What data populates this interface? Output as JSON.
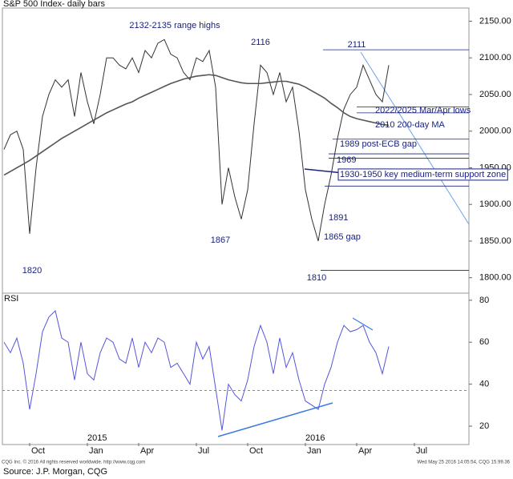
{
  "chart_data": [
    {
      "type": "line",
      "title": "S&P 500 Index- daily bars",
      "categories": [
        null,
        null,
        null,
        null,
        "Oct",
        null,
        null,
        null,
        null,
        null,
        null,
        null,
        null,
        "Jan",
        null,
        null,
        null,
        null,
        null,
        null,
        null,
        "Apr",
        null,
        null,
        null,
        null,
        null,
        null,
        null,
        null,
        "Jul",
        null,
        null,
        null,
        null,
        null,
        null,
        null,
        "Oct",
        null,
        null,
        null,
        null,
        null,
        null,
        null,
        null,
        "Jan",
        null,
        null,
        null,
        null,
        null,
        null,
        null,
        "Apr",
        null,
        null,
        null,
        null,
        null,
        null,
        null,
        null,
        "Jul",
        null,
        null,
        null,
        null,
        null,
        null,
        null,
        null
      ],
      "x_year_labels": [
        "2015",
        "2016"
      ],
      "series": [
        {
          "color": "#333333",
          "values": [
            1975,
            1995,
            2000,
            1975,
            1860,
            1950,
            2020,
            2050,
            2070,
            2060,
            2070,
            2020,
            2080,
            2040,
            2010,
            2050,
            2100,
            2100,
            2090,
            2085,
            2100,
            2080,
            2110,
            2100,
            2120,
            2125,
            2105,
            2100,
            2080,
            2070,
            2100,
            2095,
            2110,
            2060,
            1900,
            1950,
            1910,
            1880,
            1920,
            2010,
            2090,
            2080,
            2050,
            2080,
            2040,
            2060,
            2000,
            1920,
            1880,
            1850,
            1900,
            1940,
            1990,
            2030,
            2050,
            2060,
            2090,
            2070,
            2050,
            2040,
            2090,
            null,
            null,
            null,
            null,
            null,
            null,
            null,
            null,
            null,
            null,
            null,
            null
          ]
        },
        {
          "color": "#555555",
          "values": [
            1940,
            1945,
            1950,
            1955,
            1960,
            1966,
            1972,
            1978,
            1984,
            1990,
            1995,
            2000,
            2005,
            2010,
            2015,
            2020,
            2025,
            2029,
            2033,
            2037,
            2040,
            2045,
            2049,
            2053,
            2057,
            2061,
            2065,
            2068,
            2071,
            2073,
            2075,
            2076,
            2077,
            2076,
            2073,
            2070,
            2068,
            2066,
            2065,
            2065,
            2065,
            2066,
            2067,
            2068,
            2068,
            2066,
            2064,
            2060,
            2055,
            2050,
            2045,
            2038,
            2032,
            2025,
            2020,
            2017,
            2015,
            2013,
            2011,
            2009,
            2008,
            null,
            null,
            null,
            null,
            null,
            null,
            null,
            null,
            null,
            null,
            null,
            null
          ]
        }
      ],
      "levels": [
        2111,
        2033,
        2025,
        1989,
        1969,
        1963,
        1925,
        1810
      ],
      "annotations": [
        "2132-2135 range highs",
        "2116",
        "2111",
        "2022/2025 Mar/Apr lows",
        "2010 200-day MA",
        "1989 post-ECB gap",
        "1969",
        "1930-1950 key medium-term support zone",
        "1891",
        "1865 gap",
        "1867",
        "1820",
        "1810"
      ],
      "ylim": [
        1780,
        2168
      ],
      "yticks": [
        {
          "value": 2150,
          "label": "2150.00"
        },
        {
          "value": 2100,
          "label": "2100.00"
        },
        {
          "value": 2050,
          "label": "2050.00"
        },
        {
          "value": 2000,
          "label": "2000.00"
        },
        {
          "value": 1950,
          "label": "1950.00"
        },
        {
          "value": 1900,
          "label": "1900.00"
        },
        {
          "value": 1850,
          "label": "1850.00"
        },
        {
          "value": 1800,
          "label": "1800.00"
        }
      ]
    },
    {
      "type": "line",
      "title": "RSI",
      "series": [
        {
          "color": "#5555dd",
          "values": [
            60,
            55,
            62,
            50,
            28,
            45,
            65,
            72,
            75,
            62,
            60,
            42,
            60,
            45,
            42,
            55,
            62,
            60,
            52,
            50,
            62,
            48,
            60,
            55,
            62,
            60,
            48,
            50,
            45,
            40,
            60,
            52,
            58,
            38,
            18,
            40,
            35,
            32,
            42,
            58,
            68,
            60,
            45,
            62,
            48,
            55,
            42,
            32,
            30,
            28,
            40,
            48,
            60,
            68,
            65,
            66,
            68,
            60,
            55,
            45,
            58,
            null,
            null,
            null,
            null,
            null,
            null,
            null,
            null,
            null,
            null,
            null,
            null
          ]
        }
      ],
      "reference": 37,
      "ylim": [
        12,
        83
      ],
      "yticks": [
        80,
        60,
        40,
        20
      ]
    }
  ],
  "footer": {
    "copyright": "CQG Inc. © 2016 All rights reserved worldwide. http://www.cqg.com",
    "timestamp": "Wed May 25 2016 14:05:54, CQG 15.99.36",
    "source": "Source: J.P. Morgan, CQG"
  }
}
